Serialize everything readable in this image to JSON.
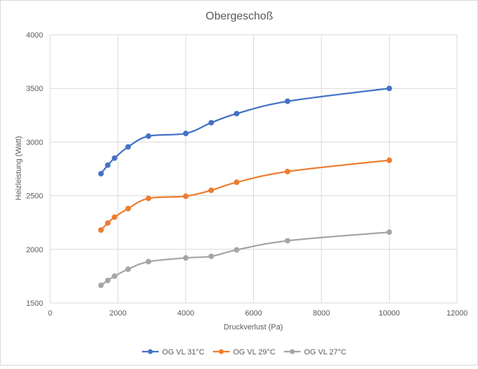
{
  "chart_data": {
    "type": "scatter",
    "title": "Obergeschoß",
    "xlabel": "Druckverlust (Pa)",
    "ylabel": "Heizleistung (Watt)",
    "xlim": [
      0,
      12000
    ],
    "ylim": [
      1500,
      4000
    ],
    "xticks": [
      0,
      2000,
      4000,
      6000,
      8000,
      10000,
      12000
    ],
    "yticks": [
      1500,
      2000,
      2500,
      3000,
      3500,
      4000
    ],
    "grid": true,
    "smooth_lines": true,
    "legend_position": "bottom",
    "series": [
      {
        "name": "OG VL 31°C",
        "color": "#4472C4",
        "x": [
          1500,
          1700,
          1900,
          2300,
          2900,
          4000,
          4750,
          5500,
          7000,
          10000
        ],
        "y": [
          2705,
          2785,
          2850,
          2955,
          3055,
          3080,
          3180,
          3265,
          3380,
          3500
        ]
      },
      {
        "name": "OG VL 29°C",
        "color": "#ED7D31",
        "x": [
          1500,
          1700,
          1900,
          2300,
          2900,
          4000,
          4750,
          5500,
          7000,
          10000
        ],
        "y": [
          2180,
          2245,
          2300,
          2380,
          2475,
          2495,
          2550,
          2625,
          2725,
          2830
        ]
      },
      {
        "name": "OG VL 27°C",
        "color": "#A5A5A5",
        "x": [
          1500,
          1700,
          1900,
          2300,
          2900,
          4000,
          4750,
          5500,
          7000,
          10000
        ],
        "y": [
          1665,
          1710,
          1750,
          1815,
          1885,
          1920,
          1935,
          1995,
          2080,
          2160
        ]
      }
    ]
  }
}
